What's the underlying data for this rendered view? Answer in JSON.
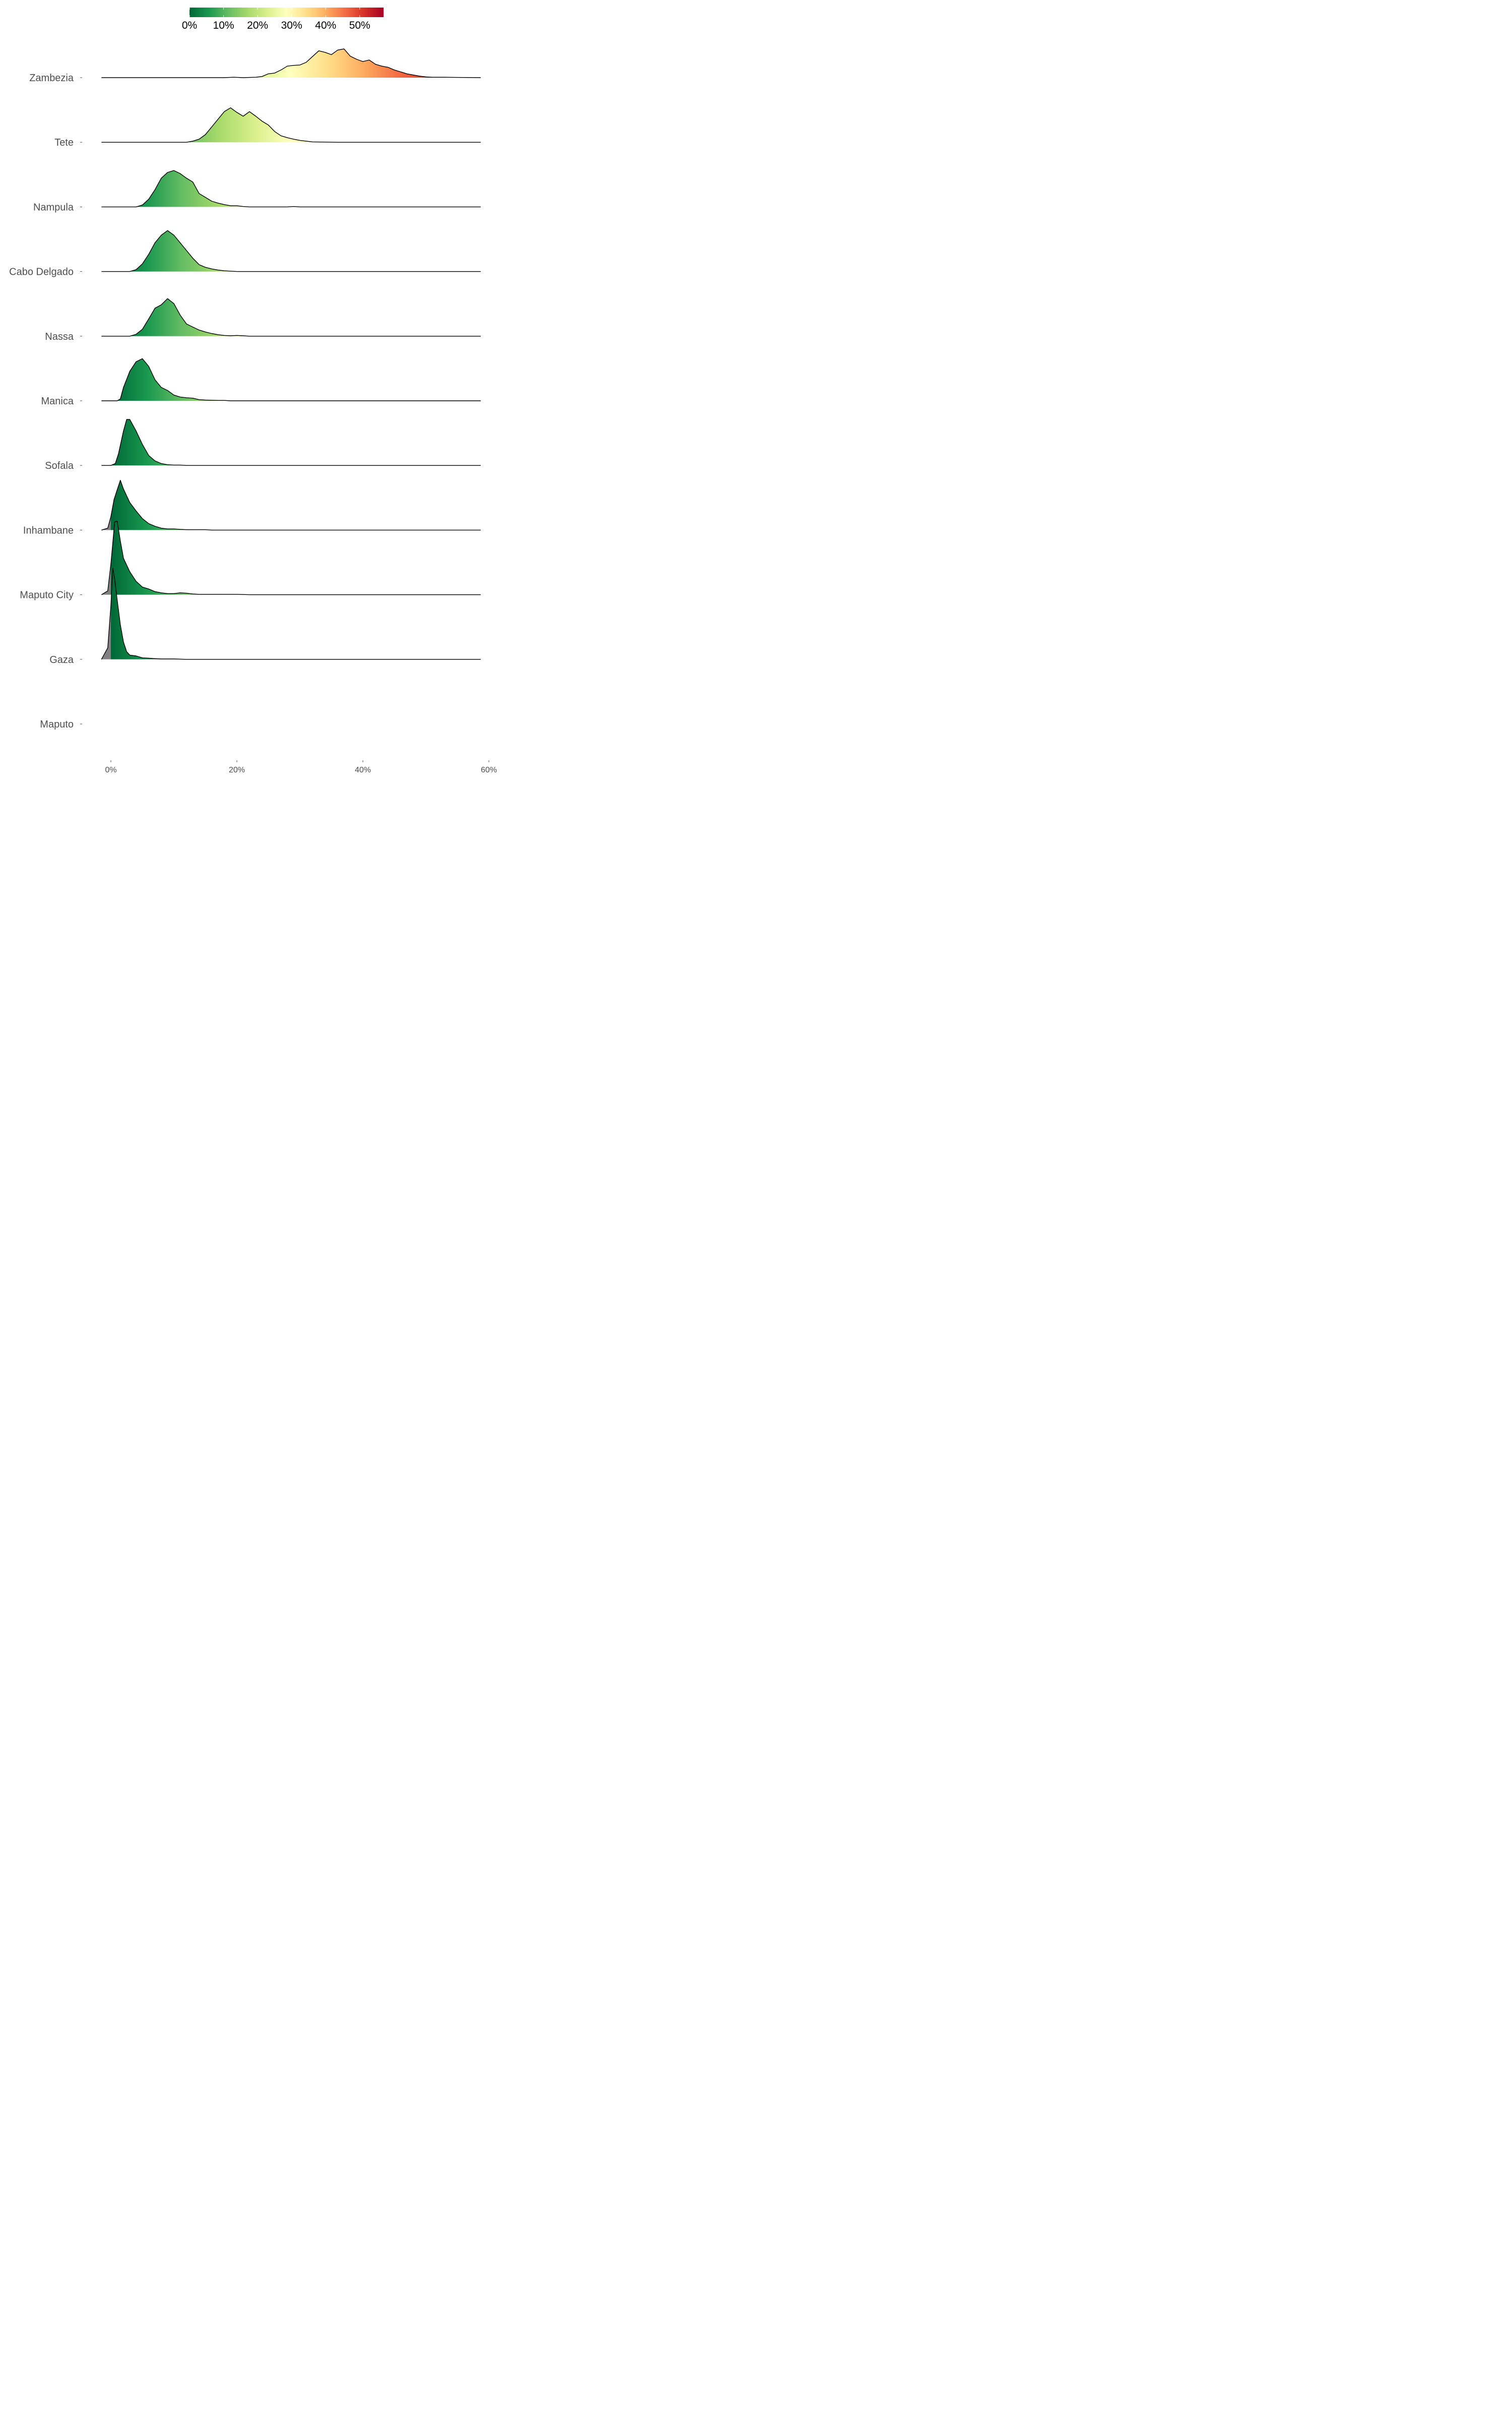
{
  "chart_data": {
    "type": "ridgeline",
    "title": "",
    "xlabel": "",
    "ylabel": "",
    "xlim": [
      -1.5,
      58.7
    ],
    "x_ticks": [
      0,
      20,
      40,
      60
    ],
    "x_tick_labels": [
      "0%",
      "20%",
      "40%",
      "60%"
    ],
    "colorbar": {
      "range": [
        0,
        57
      ],
      "ticks": [
        0,
        10,
        20,
        30,
        40,
        50
      ],
      "tick_labels": [
        "0%",
        "10%",
        "20%",
        "30%",
        "40%",
        "50%"
      ],
      "colors": [
        "#006837",
        "#1a9850",
        "#66bd63",
        "#a6d96a",
        "#d9ef8b",
        "#ffffbf",
        "#fee08b",
        "#fdae61",
        "#f46d43",
        "#d73027",
        "#a50026"
      ],
      "negative_fill": "#808080",
      "position": "top"
    },
    "series": [
      {
        "name": "Zambezia",
        "points": [
          [
            -1.5,
            0
          ],
          [
            18,
            0
          ],
          [
            19.5,
            0.01
          ],
          [
            21,
            0
          ],
          [
            23,
            0.01
          ],
          [
            24,
            0.03
          ],
          [
            25,
            0.1
          ],
          [
            26,
            0.12
          ],
          [
            27,
            0.2
          ],
          [
            28,
            0.3
          ],
          [
            29,
            0.32
          ],
          [
            30,
            0.33
          ],
          [
            31,
            0.4
          ],
          [
            32,
            0.55
          ],
          [
            33,
            0.7
          ],
          [
            34,
            0.66
          ],
          [
            35,
            0.6
          ],
          [
            36,
            0.72
          ],
          [
            37,
            0.75
          ],
          [
            38,
            0.56
          ],
          [
            39,
            0.48
          ],
          [
            40,
            0.42
          ],
          [
            41,
            0.46
          ],
          [
            42,
            0.35
          ],
          [
            43,
            0.3
          ],
          [
            44,
            0.27
          ],
          [
            45,
            0.2
          ],
          [
            46,
            0.15
          ],
          [
            47,
            0.1
          ],
          [
            48,
            0.07
          ],
          [
            49,
            0.04
          ],
          [
            50,
            0.02
          ],
          [
            51,
            0.01
          ],
          [
            53,
            0.01
          ],
          [
            55,
            0.005
          ],
          [
            58.7,
            0
          ]
        ]
      },
      {
        "name": "Tete",
        "points": [
          [
            -1.5,
            0
          ],
          [
            12,
            0
          ],
          [
            13,
            0.03
          ],
          [
            14,
            0.08
          ],
          [
            15,
            0.2
          ],
          [
            16,
            0.4
          ],
          [
            17,
            0.6
          ],
          [
            18,
            0.8
          ],
          [
            19,
            0.9
          ],
          [
            20,
            0.78
          ],
          [
            21,
            0.68
          ],
          [
            22,
            0.8
          ],
          [
            23,
            0.68
          ],
          [
            24,
            0.55
          ],
          [
            25,
            0.45
          ],
          [
            26,
            0.28
          ],
          [
            27,
            0.17
          ],
          [
            28,
            0.12
          ],
          [
            29,
            0.08
          ],
          [
            30,
            0.05
          ],
          [
            31,
            0.03
          ],
          [
            32,
            0.01
          ],
          [
            34,
            0.005
          ],
          [
            36,
            0
          ],
          [
            58.7,
            0
          ]
        ]
      },
      {
        "name": "Nampula",
        "points": [
          [
            -1.5,
            0
          ],
          [
            4,
            0
          ],
          [
            5,
            0.05
          ],
          [
            6,
            0.2
          ],
          [
            7,
            0.45
          ],
          [
            8,
            0.75
          ],
          [
            9,
            0.9
          ],
          [
            10,
            0.95
          ],
          [
            11,
            0.87
          ],
          [
            12,
            0.75
          ],
          [
            13,
            0.65
          ],
          [
            14,
            0.35
          ],
          [
            15,
            0.25
          ],
          [
            16,
            0.15
          ],
          [
            17,
            0.1
          ],
          [
            18,
            0.06
          ],
          [
            19,
            0.03
          ],
          [
            20,
            0.03
          ],
          [
            21,
            0.01
          ],
          [
            22,
            0
          ],
          [
            28,
            0
          ],
          [
            29,
            0.01
          ],
          [
            30,
            0
          ],
          [
            58.7,
            0
          ]
        ]
      },
      {
        "name": "Cabo Delgado",
        "points": [
          [
            -1.5,
            0
          ],
          [
            3,
            0
          ],
          [
            4,
            0.05
          ],
          [
            5,
            0.2
          ],
          [
            6,
            0.45
          ],
          [
            7,
            0.75
          ],
          [
            8,
            0.95
          ],
          [
            9,
            1.07
          ],
          [
            10,
            0.95
          ],
          [
            11,
            0.75
          ],
          [
            12,
            0.55
          ],
          [
            13,
            0.35
          ],
          [
            14,
            0.18
          ],
          [
            15,
            0.11
          ],
          [
            16,
            0.07
          ],
          [
            17,
            0.04
          ],
          [
            18,
            0.02
          ],
          [
            19,
            0.01
          ],
          [
            20,
            0
          ],
          [
            58.7,
            0
          ]
        ]
      },
      {
        "name": "Nassa",
        "points": [
          [
            -1.5,
            0
          ],
          [
            3,
            0
          ],
          [
            4,
            0.05
          ],
          [
            5,
            0.18
          ],
          [
            6,
            0.45
          ],
          [
            7,
            0.73
          ],
          [
            8,
            0.82
          ],
          [
            9,
            0.98
          ],
          [
            10,
            0.85
          ],
          [
            11,
            0.55
          ],
          [
            12,
            0.32
          ],
          [
            13,
            0.24
          ],
          [
            14,
            0.16
          ],
          [
            15,
            0.11
          ],
          [
            16,
            0.07
          ],
          [
            17,
            0.04
          ],
          [
            18,
            0.02
          ],
          [
            19,
            0.01
          ],
          [
            20,
            0.02
          ],
          [
            21,
            0.01
          ],
          [
            22,
            0
          ],
          [
            58.7,
            0
          ]
        ]
      },
      {
        "name": "Manica",
        "points": [
          [
            -1.5,
            0
          ],
          [
            1,
            0
          ],
          [
            1.5,
            0.05
          ],
          [
            2,
            0.35
          ],
          [
            3,
            0.77
          ],
          [
            4,
            1.02
          ],
          [
            5,
            1.1
          ],
          [
            6,
            0.9
          ],
          [
            7,
            0.55
          ],
          [
            8,
            0.35
          ],
          [
            9,
            0.27
          ],
          [
            10,
            0.15
          ],
          [
            11,
            0.1
          ],
          [
            12,
            0.08
          ],
          [
            13,
            0.07
          ],
          [
            14,
            0.03
          ],
          [
            15,
            0.02
          ],
          [
            17,
            0.01
          ],
          [
            18,
            0.01
          ],
          [
            19,
            0
          ],
          [
            58.7,
            0
          ]
        ]
      },
      {
        "name": "Sofala",
        "points": [
          [
            -1.5,
            0
          ],
          [
            0,
            0
          ],
          [
            0.7,
            0.05
          ],
          [
            1.2,
            0.3
          ],
          [
            2,
            0.9
          ],
          [
            2.5,
            1.2
          ],
          [
            3,
            1.2
          ],
          [
            4,
            0.9
          ],
          [
            5,
            0.55
          ],
          [
            6,
            0.26
          ],
          [
            7,
            0.12
          ],
          [
            8,
            0.05
          ],
          [
            9,
            0.02
          ],
          [
            10,
            0.01
          ],
          [
            11,
            0.01
          ],
          [
            12,
            0
          ],
          [
            58.7,
            0
          ]
        ]
      },
      {
        "name": "Inhambane",
        "points": [
          [
            -1.5,
            0
          ],
          [
            -0.5,
            0.05
          ],
          [
            0,
            0.35
          ],
          [
            0.5,
            0.8
          ],
          [
            1,
            1.05
          ],
          [
            1.5,
            1.3
          ],
          [
            2,
            1.07
          ],
          [
            3,
            0.72
          ],
          [
            4,
            0.5
          ],
          [
            5,
            0.3
          ],
          [
            6,
            0.17
          ],
          [
            7,
            0.1
          ],
          [
            8,
            0.05
          ],
          [
            9,
            0.03
          ],
          [
            10,
            0.03
          ],
          [
            11,
            0.02
          ],
          [
            12,
            0.01
          ],
          [
            13,
            0.01
          ],
          [
            14,
            0.01
          ],
          [
            15,
            0.01
          ],
          [
            16,
            0
          ],
          [
            58.7,
            0
          ]
        ]
      },
      {
        "name": "Maputo City",
        "points": [
          [
            -1.5,
            0
          ],
          [
            -0.5,
            0.1
          ],
          [
            0,
            0.8
          ],
          [
            0.3,
            1.35
          ],
          [
            0.6,
            1.9
          ],
          [
            1,
            1.92
          ],
          [
            1.5,
            1.4
          ],
          [
            2,
            0.95
          ],
          [
            3,
            0.6
          ],
          [
            4,
            0.35
          ],
          [
            5,
            0.2
          ],
          [
            6,
            0.15
          ],
          [
            7,
            0.08
          ],
          [
            8,
            0.05
          ],
          [
            9,
            0.03
          ],
          [
            10,
            0.03
          ],
          [
            11,
            0.05
          ],
          [
            12,
            0.04
          ],
          [
            13,
            0.02
          ],
          [
            14,
            0.01
          ],
          [
            15,
            0.01
          ],
          [
            16,
            0.01
          ],
          [
            18,
            0.01
          ],
          [
            20,
            0.01
          ],
          [
            22,
            0
          ],
          [
            58.7,
            0
          ]
        ]
      },
      {
        "name": "Gaza",
        "points": [
          [
            -1.5,
            0
          ],
          [
            -0.5,
            0.3
          ],
          [
            0,
            1.4
          ],
          [
            0.3,
            2.38
          ],
          [
            0.6,
            2.1
          ],
          [
            1,
            1.55
          ],
          [
            1.5,
            0.9
          ],
          [
            2,
            0.45
          ],
          [
            2.5,
            0.2
          ],
          [
            3,
            0.11
          ],
          [
            4,
            0.09
          ],
          [
            5,
            0.04
          ],
          [
            6,
            0.03
          ],
          [
            7,
            0.02
          ],
          [
            8,
            0.01
          ],
          [
            9,
            0.01
          ],
          [
            10,
            0.01
          ],
          [
            12,
            0
          ],
          [
            58.7,
            0
          ]
        ]
      },
      {
        "name": "Maputo",
        "points": []
      }
    ]
  }
}
